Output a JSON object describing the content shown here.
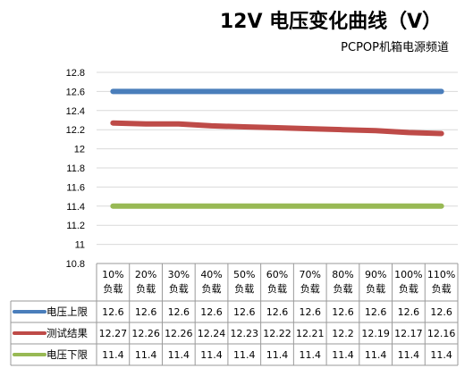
{
  "chart_data": {
    "type": "line",
    "title": "12V 电压变化曲线（V）",
    "subtitle": "PCPOP机箱电源频道",
    "categories": [
      "10%负载",
      "20%负载",
      "30%负载",
      "40%负载",
      "50%负载",
      "60%负载",
      "70%负载",
      "80%负载",
      "90%负载",
      "100%负载",
      "110%负载"
    ],
    "category_lines": [
      [
        "10%",
        "负载"
      ],
      [
        "20%",
        "负载"
      ],
      [
        "30%",
        "负载"
      ],
      [
        "40%",
        "负载"
      ],
      [
        "50%",
        "负载"
      ],
      [
        "60%",
        "负载"
      ],
      [
        "70%",
        "负载"
      ],
      [
        "80%",
        "负载"
      ],
      [
        "90%",
        "负载"
      ],
      [
        "100%",
        "负载"
      ],
      [
        "110%",
        "负载"
      ]
    ],
    "yticks": [
      "10.8",
      "11",
      "11.2",
      "11.4",
      "11.6",
      "11.8",
      "12",
      "12.2",
      "12.4",
      "12.6",
      "12.8"
    ],
    "ylim": [
      10.8,
      12.8
    ],
    "grid": true,
    "legend_placement": "data-table-left",
    "series": [
      {
        "name": "电压上限",
        "color": "#4a7ebb",
        "values": [
          12.6,
          12.6,
          12.6,
          12.6,
          12.6,
          12.6,
          12.6,
          12.6,
          12.6,
          12.6,
          12.6
        ],
        "labels": [
          "12.6",
          "12.6",
          "12.6",
          "12.6",
          "12.6",
          "12.6",
          "12.6",
          "12.6",
          "12.6",
          "12.6",
          "12.6"
        ]
      },
      {
        "name": "测试结果",
        "color": "#be4b48",
        "values": [
          12.27,
          12.26,
          12.26,
          12.24,
          12.23,
          12.22,
          12.21,
          12.2,
          12.19,
          12.17,
          12.16
        ],
        "labels": [
          "12.27",
          "12.26",
          "12.26",
          "12.24",
          "12.23",
          "12.22",
          "12.21",
          "12.2",
          "12.19",
          "12.17",
          "12.16"
        ]
      },
      {
        "name": "电压下限",
        "color": "#98b954",
        "values": [
          11.4,
          11.4,
          11.4,
          11.4,
          11.4,
          11.4,
          11.4,
          11.4,
          11.4,
          11.4,
          11.4
        ],
        "labels": [
          "11.4",
          "11.4",
          "11.4",
          "11.4",
          "11.4",
          "11.4",
          "11.4",
          "11.4",
          "11.4",
          "11.4",
          "11.4"
        ]
      }
    ]
  }
}
